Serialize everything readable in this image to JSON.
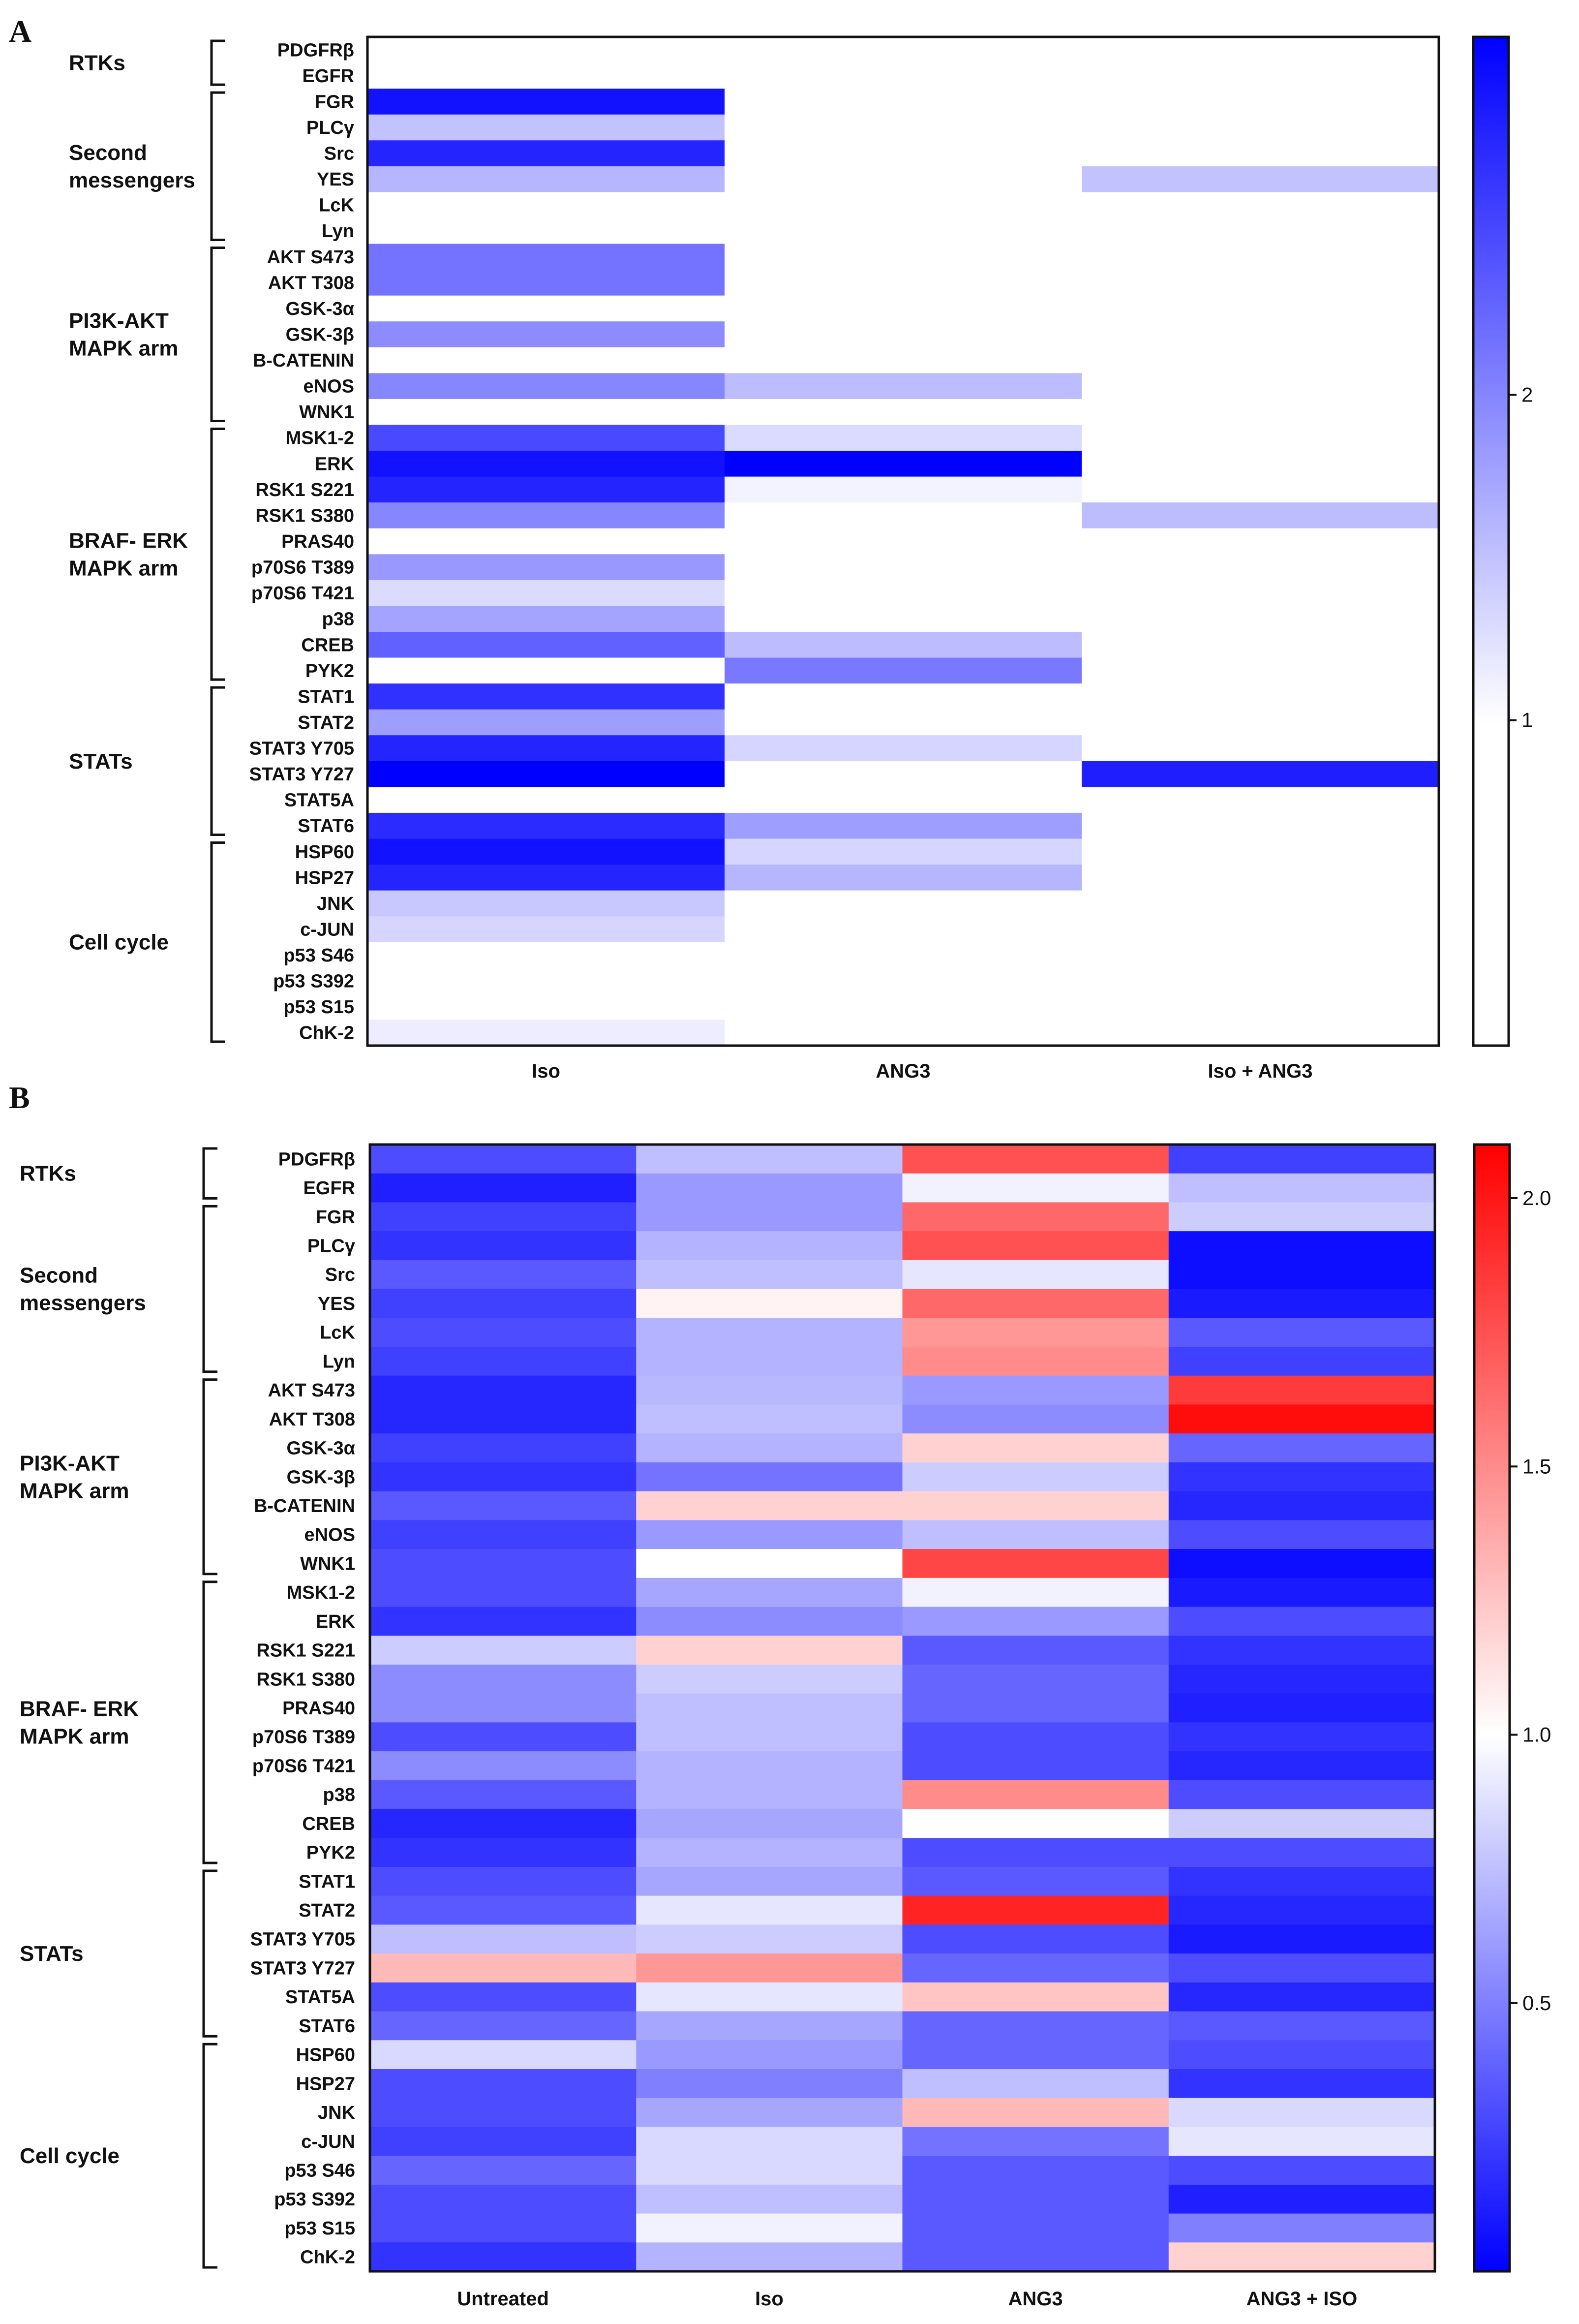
{
  "colors": {
    "low": "#0000ff",
    "mid": "#ffffff",
    "high": "#ff0000",
    "outline": "#111111"
  },
  "chart_data": [
    {
      "panel": "A",
      "type": "heatmap",
      "columns": [
        "Iso",
        "ANG3",
        "Iso + ANG3"
      ],
      "rows": [
        "PDGFRβ",
        "EGFR",
        "FGR",
        "PLCγ",
        "Src",
        "YES",
        "LcK",
        "Lyn",
        "AKT S473",
        "AKT T308",
        "GSK-3α",
        "GSK-3β",
        "B-CATENIN",
        "eNOS",
        "WNK1",
        "MSK1-2",
        "ERK",
        "RSK1 S221",
        "RSK1 S380",
        "PRAS40",
        "p70S6 T389",
        "p70S6 T421",
        "p38",
        "CREB",
        "PYK2",
        "STAT1",
        "STAT2",
        "STAT3 Y705",
        "STAT3 Y727",
        "STAT5A",
        "STAT6",
        "HSP60",
        "HSP27",
        "JNK",
        "c-JUN",
        "p53 S46",
        "p53 S392",
        "p53 S15",
        "ChK-2"
      ],
      "groups": [
        {
          "label": [
            "RTKs"
          ],
          "start": 0,
          "end": 1
        },
        {
          "label": [
            "Second",
            "messengers"
          ],
          "start": 2,
          "end": 7
        },
        {
          "label": [
            "PI3K-AKT",
            "MAPK arm"
          ],
          "start": 8,
          "end": 14
        },
        {
          "label": [
            "BRAF- ERK",
            "MAPK arm"
          ],
          "start": 15,
          "end": 24
        },
        {
          "label": [
            "STATs"
          ],
          "start": 25,
          "end": 30
        },
        {
          "label": [
            "Cell cycle"
          ],
          "start": 31,
          "end": 38
        }
      ],
      "values": [
        [
          1.0,
          1.0,
          1.0
        ],
        [
          1.0,
          1.0,
          1.0
        ],
        [
          2.95,
          1.0,
          1.0
        ],
        [
          1.5,
          1.0,
          1.0
        ],
        [
          2.8,
          1.0,
          1.0
        ],
        [
          1.6,
          1.0,
          1.5
        ],
        [
          1.0,
          1.0,
          1.0
        ],
        [
          1.0,
          1.0,
          1.0
        ],
        [
          2.15,
          1.0,
          1.0
        ],
        [
          2.15,
          1.0,
          1.0
        ],
        [
          1.0,
          1.0,
          1.0
        ],
        [
          1.95,
          1.0,
          1.0
        ],
        [
          1.0,
          1.0,
          1.0
        ],
        [
          2.0,
          1.55,
          1.0
        ],
        [
          1.0,
          1.0,
          1.0
        ],
        [
          2.5,
          1.3,
          1.0
        ],
        [
          2.95,
          3.1,
          1.0
        ],
        [
          2.8,
          1.1,
          1.0
        ],
        [
          2.0,
          1.0,
          1.55
        ],
        [
          1.0,
          1.0,
          1.0
        ],
        [
          1.85,
          1.0,
          1.0
        ],
        [
          1.3,
          1.0,
          1.0
        ],
        [
          1.75,
          1.0,
          1.0
        ],
        [
          2.3,
          1.55,
          1.0
        ],
        [
          1.0,
          2.1,
          1.0
        ],
        [
          2.7,
          1.0,
          1.0
        ],
        [
          1.8,
          1.0,
          1.0
        ],
        [
          2.8,
          1.35,
          1.0
        ],
        [
          3.1,
          1.0,
          2.85
        ],
        [
          1.0,
          1.0,
          1.0
        ],
        [
          2.75,
          1.8,
          1.0
        ],
        [
          2.95,
          1.35,
          1.0
        ],
        [
          2.8,
          1.6,
          1.0
        ],
        [
          1.45,
          1.0,
          1.0
        ],
        [
          1.35,
          1.0,
          1.0
        ],
        [
          1.0,
          1.0,
          1.0
        ],
        [
          1.0,
          1.0,
          1.0
        ],
        [
          1.0,
          1.0,
          1.0
        ],
        [
          1.15,
          1.0,
          1.0
        ]
      ],
      "colorscale": "white-to-blue",
      "colorbar": {
        "ticks": [
          1,
          2
        ],
        "range": [
          0,
          3.1
        ]
      }
    },
    {
      "panel": "B",
      "type": "heatmap",
      "columns": [
        "Untreated",
        "Iso",
        "ANG3",
        "ANG3 + ISO"
      ],
      "rows": [
        "PDGFRβ",
        "EGFR",
        "FGR",
        "PLCγ",
        "Src",
        "YES",
        "LcK",
        "Lyn",
        "AKT S473",
        "AKT T308",
        "GSK-3α",
        "GSK-3β",
        "B-CATENIN",
        "eNOS",
        "WNK1",
        "MSK1-2",
        "ERK",
        "RSK1 S221",
        "RSK1 S380",
        "PRAS40",
        "p70S6 T389",
        "p70S6 T421",
        "p38",
        "CREB",
        "PYK2",
        "STAT1",
        "STAT2",
        "STAT3 Y705",
        "STAT3 Y727",
        "STAT5A",
        "STAT6",
        "HSP60",
        "HSP27",
        "JNK",
        "c-JUN",
        "p53 S46",
        "p53 S392",
        "p53 S15",
        "ChK-2"
      ],
      "groups": [
        {
          "label": [
            "RTKs"
          ],
          "start": 0,
          "end": 1
        },
        {
          "label": [
            "Second",
            "messengers"
          ],
          "start": 2,
          "end": 7
        },
        {
          "label": [
            "PI3K-AKT",
            "MAPK arm"
          ],
          "start": 8,
          "end": 14
        },
        {
          "label": [
            "BRAF- ERK",
            "MAPK arm"
          ],
          "start": 15,
          "end": 24
        },
        {
          "label": [
            "STATs"
          ],
          "start": 25,
          "end": 30
        },
        {
          "label": [
            "Cell cycle"
          ],
          "start": 31,
          "end": 38
        }
      ],
      "values": [
        [
          0.3,
          0.75,
          1.75,
          0.25
        ],
        [
          0.12,
          0.6,
          0.95,
          0.75
        ],
        [
          0.25,
          0.6,
          1.65,
          0.8
        ],
        [
          0.2,
          0.7,
          1.75,
          0.05
        ],
        [
          0.35,
          0.75,
          0.9,
          0.05
        ],
        [
          0.25,
          1.05,
          1.65,
          0.1
        ],
        [
          0.3,
          0.7,
          1.45,
          0.35
        ],
        [
          0.25,
          0.7,
          1.5,
          0.25
        ],
        [
          0.15,
          0.72,
          0.6,
          1.85
        ],
        [
          0.15,
          0.75,
          0.55,
          2.05
        ],
        [
          0.25,
          0.7,
          1.2,
          0.4
        ],
        [
          0.2,
          0.45,
          0.8,
          0.2
        ],
        [
          0.35,
          1.2,
          1.2,
          0.15
        ],
        [
          0.25,
          0.6,
          0.75,
          0.3
        ],
        [
          0.3,
          1.0,
          1.8,
          0.05
        ],
        [
          0.3,
          0.65,
          0.95,
          0.1
        ],
        [
          0.2,
          0.55,
          0.6,
          0.3
        ],
        [
          0.8,
          1.2,
          0.35,
          0.2
        ],
        [
          0.55,
          0.8,
          0.4,
          0.15
        ],
        [
          0.55,
          0.75,
          0.4,
          0.12
        ],
        [
          0.3,
          0.75,
          0.3,
          0.2
        ],
        [
          0.55,
          0.7,
          0.3,
          0.15
        ],
        [
          0.35,
          0.7,
          1.5,
          0.3
        ],
        [
          0.15,
          0.65,
          1.0,
          0.8
        ],
        [
          0.2,
          0.7,
          0.3,
          0.3
        ],
        [
          0.3,
          0.65,
          0.35,
          0.2
        ],
        [
          0.35,
          0.9,
          1.95,
          0.15
        ],
        [
          0.75,
          0.8,
          0.3,
          0.1
        ],
        [
          1.3,
          1.45,
          0.4,
          0.3
        ],
        [
          0.3,
          0.9,
          1.25,
          0.15
        ],
        [
          0.4,
          0.65,
          0.4,
          0.35
        ],
        [
          0.85,
          0.6,
          0.4,
          0.3
        ],
        [
          0.3,
          0.5,
          0.75,
          0.2
        ],
        [
          0.3,
          0.65,
          1.3,
          0.85
        ],
        [
          0.25,
          0.85,
          0.45,
          0.9
        ],
        [
          0.4,
          0.85,
          0.35,
          0.3
        ],
        [
          0.3,
          0.75,
          0.35,
          0.12
        ],
        [
          0.3,
          0.95,
          0.35,
          0.5
        ],
        [
          0.2,
          0.7,
          0.35,
          1.2
        ]
      ],
      "colorscale": "blue-white-red",
      "colorbar": {
        "ticks": [
          0.5,
          1.0,
          1.5,
          2.0
        ],
        "range": [
          0,
          2.1
        ]
      }
    }
  ]
}
